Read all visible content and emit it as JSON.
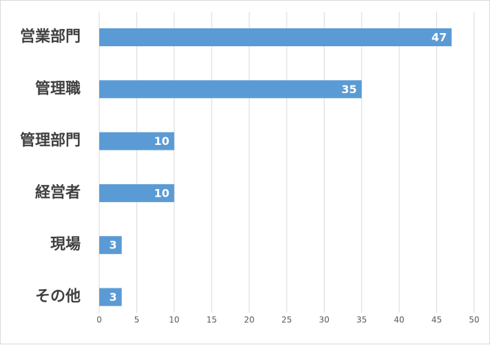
{
  "chart_data": {
    "type": "bar",
    "orientation": "horizontal",
    "categories": [
      "営業部門",
      "管理職",
      "管理部門",
      "経営者",
      "現場",
      "その他"
    ],
    "values": [
      47,
      35,
      10,
      10,
      3,
      3
    ],
    "xlim": [
      0,
      50
    ],
    "xticks": [
      0,
      5,
      10,
      15,
      20,
      25,
      30,
      35,
      40,
      45,
      50
    ],
    "grid": "vertical",
    "legend": "none",
    "data_labels": "inside-end",
    "colors": {
      "bar": "#5b9bd5",
      "grid": "#d9d9d9",
      "category_text": "#404040",
      "tick_text": "#595959",
      "data_label_text": "#ffffff"
    }
  }
}
